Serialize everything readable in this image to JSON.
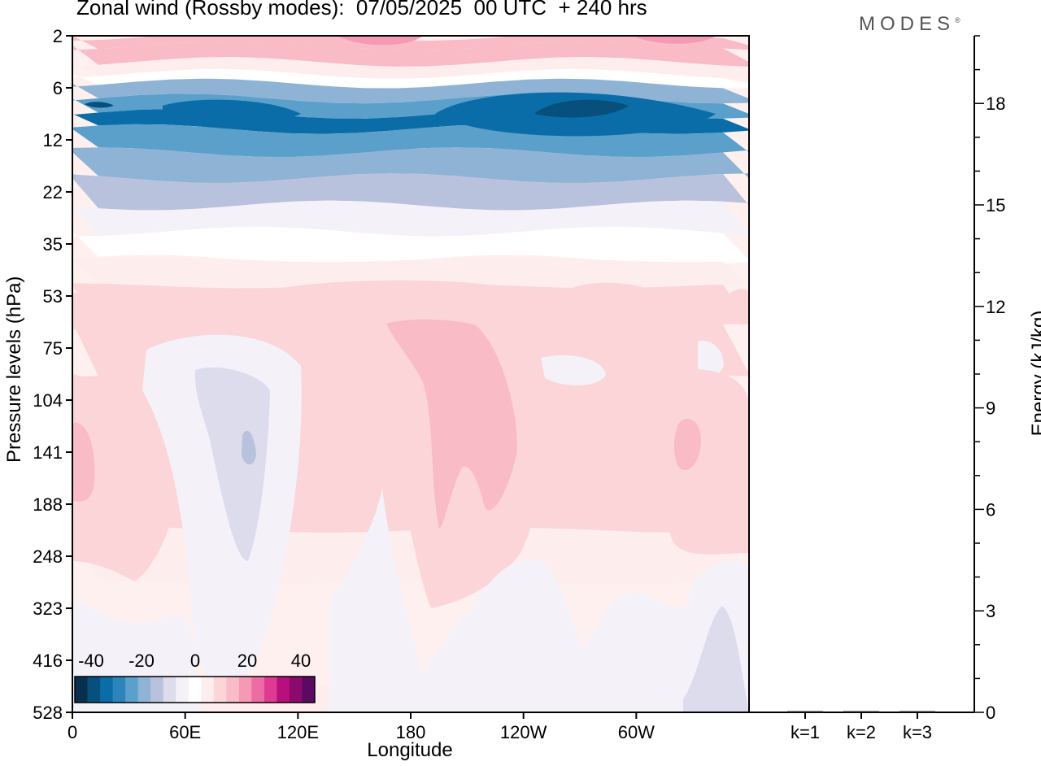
{
  "title": "Zonal wind (Rossby modes):  07/05/2025  00 UTC  + 240 hrs",
  "logo_text": "MODES",
  "logo_mark": "®",
  "chart_data": [
    {
      "type": "heatmap",
      "title": "Zonal wind (Rossby modes):  07/05/2025  00 UTC  + 240 hrs",
      "xlabel": "Longitude",
      "ylabel": "Pressure levels (hPa)",
      "x_ticks": [
        "0",
        "60E",
        "120E",
        "180",
        "120W",
        "60W"
      ],
      "x_tick_values": [
        0,
        60,
        120,
        180,
        240,
        300
      ],
      "xlim": [
        0,
        360
      ],
      "y_ticks": [
        "2",
        "6",
        "12",
        "22",
        "35",
        "53",
        "75",
        "104",
        "141",
        "188",
        "248",
        "323",
        "416",
        "528"
      ],
      "y_scale": "pressure levels, index-spaced, top = 2 hPa",
      "colorbar": {
        "ticks": [
          "-40",
          "-20",
          "0",
          "20",
          "40"
        ],
        "range": [
          -44,
          44
        ],
        "step": 4,
        "colors": [
          "#08304e",
          "#07507e",
          "#0a6da8",
          "#2b85bb",
          "#5b9fcb",
          "#8eb3d4",
          "#b9c2dc",
          "#dcdced",
          "#f4f1f8",
          "#ffffff",
          "#fdeeed",
          "#fbd5d7",
          "#f9bbc6",
          "#f599b4",
          "#ed6ca3",
          "#de3a91",
          "#b80f7c",
          "#8a0a6e",
          "#5a0a63"
        ],
        "neutral_color": "#fef0ef"
      },
      "level_values_ms": {
        "2": 10,
        "3": 8,
        "4": 2,
        "5": -8,
        "6": -22,
        "8": -28,
        "9": -36,
        "12": -28,
        "16": -22,
        "22": -18,
        "28": -12,
        "35": -6,
        "45": 2,
        "53": 4,
        "75": 4,
        "104": 4,
        "141": 6,
        "188": 4,
        "248": 2,
        "323": 0,
        "416": -1,
        "528": -2
      }
    },
    {
      "type": "bar",
      "categories": [
        "k=1",
        "k=2",
        "k=3"
      ],
      "values": [
        0.02,
        0.01,
        0.01
      ],
      "ylabel": "Energy (kJ/kg)",
      "y_ticks": [
        0,
        3,
        6,
        9,
        12,
        15,
        18
      ],
      "ylim": [
        0,
        20
      ]
    }
  ]
}
